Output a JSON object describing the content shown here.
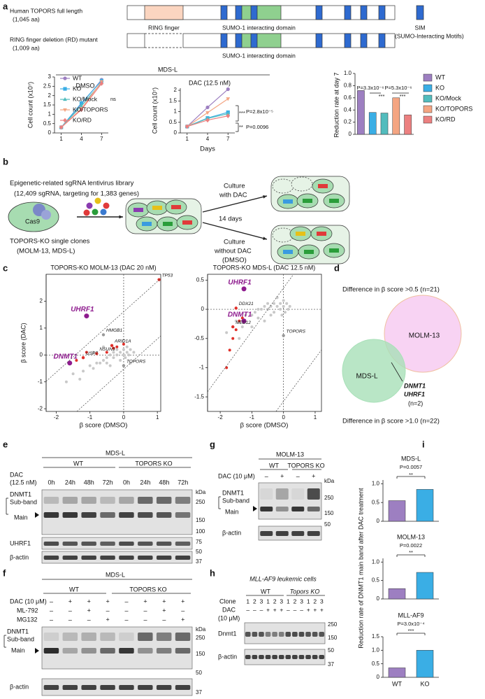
{
  "a": {
    "label": "a",
    "full_name": "Human TOPORS full length",
    "full_len": "(1,045 aa)",
    "rd_name": "RING finger deletion (RD) mutant",
    "rd_len": "(1,009 aa)",
    "ring": "RING finger",
    "sumo_domain": "SUMO-1 interacting domain",
    "sim": "SIM",
    "sim_full": "(SUMO-Interacting Motifs)",
    "cell_line": "MDS-L"
  },
  "chart_data": [
    {
      "type": "line",
      "title": "DMSO",
      "y_label": "Cell count (x10⁷)",
      "x": [
        1,
        4,
        7
      ],
      "xlim": [
        0,
        8
      ],
      "xticks": [
        1,
        4,
        7
      ],
      "ylim": [
        0,
        3
      ],
      "yticks": [
        0,
        0.5,
        1,
        1.5,
        2,
        2.5,
        3
      ],
      "legend": "upper left",
      "series": [
        {
          "name": "WT",
          "color": "#9d7fc1",
          "values": [
            0.3,
            1.55,
            2.85
          ]
        },
        {
          "name": "KO",
          "color": "#3aaee5",
          "values": [
            0.3,
            1.6,
            2.8
          ]
        },
        {
          "name": "KO/Mock",
          "color": "#52bcbd",
          "values": [
            0.3,
            1.45,
            2.7
          ]
        },
        {
          "name": "KO/TOPORS",
          "color": "#f4a582",
          "values": [
            0.3,
            1.3,
            2.75
          ]
        },
        {
          "name": "KO/RD",
          "color": "#ec8080",
          "values": [
            0.3,
            1.25,
            2.65
          ]
        }
      ],
      "annotations": [
        "ns"
      ]
    },
    {
      "type": "line",
      "title": "DAC (12.5 nM)",
      "x_label": "Days",
      "y_label": "Cell count (x10⁷)",
      "x": [
        1,
        4,
        7
      ],
      "xlim": [
        0,
        8
      ],
      "xticks": [
        1,
        4,
        7
      ],
      "ylim": [
        0,
        2.1
      ],
      "yticks": [
        0,
        0.5,
        1,
        1.5,
        2
      ],
      "series": [
        {
          "color": "#9d7fc1",
          "values": [
            0.3,
            1.2,
            2.05
          ]
        },
        {
          "color": "#3aaee5",
          "values": [
            0.3,
            0.7,
            0.97
          ]
        },
        {
          "color": "#52bcbd",
          "values": [
            0.3,
            0.68,
            0.9
          ]
        },
        {
          "color": "#f4a582",
          "values": [
            0.3,
            0.95,
            1.6
          ]
        },
        {
          "color": "#ec8080",
          "values": [
            0.3,
            0.6,
            0.8
          ]
        }
      ],
      "annotations": [
        "***",
        "P=2.8x10⁻⁵",
        "**",
        "P=0.0096"
      ]
    },
    {
      "type": "bar",
      "y_label": "Reduction rate at day 7",
      "categories": [
        "WT",
        "KO",
        "KO/Mock",
        "KO/TOPORS",
        "KO/RD"
      ],
      "values": [
        0.72,
        0.36,
        0.35,
        0.6,
        0.32
      ],
      "colors": [
        "#9d7fc1",
        "#3aaee5",
        "#52bcbd",
        "#f4a582",
        "#ec8080"
      ],
      "ylim": [
        0,
        1
      ],
      "yticks": [
        0,
        0.2,
        0.4,
        0.6,
        0.8,
        {
          "value": 1,
          "label": "1.0"
        }
      ],
      "legend": "right",
      "annotations": [
        "P=3.3x10⁻⁶",
        "P=5.3x10⁻⁶",
        "***",
        "***"
      ]
    },
    {
      "type": "scatter",
      "title": "TOPORS-KO MOLM-13 (DAC 20 nM)",
      "x_label": "β score (DMSO)",
      "y_label": "β score (DAC)",
      "xlim": [
        -2.3,
        1.1
      ],
      "xticks": [
        -2,
        -1,
        0,
        1
      ],
      "ylim": [
        -2.1,
        3
      ],
      "yticks": [
        -2,
        -1,
        0,
        1,
        2
      ],
      "series": [
        {
          "color": "#c8c8c8",
          "x": [
            -1.5,
            -1.2,
            -1.0,
            -0.9,
            -0.8,
            -0.7,
            -0.6,
            -0.5,
            -0.5,
            -0.4,
            -0.3,
            -0.3,
            -0.2,
            -0.2,
            -0.1,
            -0.1,
            0,
            0,
            0.05,
            0.1,
            0.1,
            0.15,
            0.2,
            0.3,
            -1.3,
            -1.7,
            -0.6,
            0.2,
            -0.9,
            -0.4
          ],
          "values": [
            -0.7,
            -0.6,
            -0.4,
            -0.5,
            -0.3,
            -0.3,
            -0.2,
            -0.1,
            -0.3,
            0,
            -0.1,
            0.1,
            0,
            0.2,
            -0.2,
            0.1,
            0,
            0.2,
            -0.1,
            0.1,
            0.3,
            0,
            0.2,
            0.1,
            -0.9,
            -1.0,
            0.3,
            -0.3,
            0.1,
            -0.4
          ]
        },
        {
          "color": "#e0302a",
          "x": [
            -1.4,
            -1.1,
            -0.5,
            -0.3,
            -0.2,
            0
          ],
          "values": [
            -0.2,
            0.1,
            0.1,
            0.25,
            0.3,
            0.4
          ]
        }
      ],
      "labeled_points": [
        {
          "label": "UHRF1",
          "x": -1.1,
          "y": 1.45,
          "color": "#8e1b8e"
        },
        {
          "label": "DNMT1",
          "x": -1.6,
          "y": -0.3,
          "color": "#8e1b8e"
        },
        {
          "label": "HMGB1",
          "x": -0.6,
          "y": 0.75,
          "color": "#999999"
        },
        {
          "label": "ARID1A",
          "x": -0.35,
          "y": 0.35,
          "color": "#e0302a"
        },
        {
          "label": "NSUN3",
          "x": -0.8,
          "y": 0.05,
          "color": "#e0302a"
        },
        {
          "label": "USP7",
          "x": -1.2,
          "y": -0.1,
          "color": "#e0302a"
        },
        {
          "label": "TP53",
          "x": 1.05,
          "y": 2.8,
          "color": "#e0302a"
        },
        {
          "label": "TOPORS",
          "x": 0,
          "y": -0.4,
          "color": "#999999"
        }
      ]
    },
    {
      "type": "scatter",
      "title": "TOPORS-KO MDS-L (DAC 12.5 nM)",
      "x_label": "β score (DMSO)",
      "xlim": [
        -2.4,
        1.2
      ],
      "xticks": [
        -2,
        -1,
        0,
        1
      ],
      "ylim": [
        -1.75,
        0.6
      ],
      "yticks": [
        -1.5,
        -1,
        -0.5,
        0,
        0.5
      ],
      "series": [
        {
          "color": "#c8c8c8",
          "x": [
            -1.8,
            -1.5,
            -1.3,
            -1.2,
            -1.0,
            -0.9,
            -0.8,
            -0.7,
            -0.6,
            -0.5,
            -0.4,
            -0.3,
            -0.2,
            -0.1,
            0,
            0,
            0.1,
            0.2,
            -0.3,
            -0.1,
            -0.6,
            -1.0,
            -0.4,
            0.05,
            -0.2,
            -0.8,
            -1.4,
            0.15,
            -0.05,
            -0.5
          ],
          "values": [
            -0.4,
            -0.2,
            -0.3,
            -0.1,
            -0.1,
            -0.05,
            0,
            0,
            0.05,
            0,
            0.05,
            0.1,
            0.05,
            0.1,
            0.05,
            0.15,
            0.1,
            0.05,
            -0.05,
            0,
            -0.2,
            -0.3,
            -0.1,
            -0.05,
            0.2,
            -0.15,
            -0.5,
            0,
            -0.1,
            0.1
          ]
        },
        {
          "color": "#e0302a",
          "x": [
            -1.8,
            -1.7,
            -1.6,
            -1.5,
            -1.4,
            -1.3
          ],
          "values": [
            -1.0,
            -0.7,
            -0.5,
            -0.35,
            -0.2,
            -0.15
          ]
        }
      ],
      "labeled_points": [
        {
          "label": "UHRF1",
          "x": -1.25,
          "y": 0.35,
          "color": "#8e1b8e"
        },
        {
          "label": "DNMT1",
          "x": -1.25,
          "y": -0.2,
          "color": "#8e1b8e"
        },
        {
          "label": "DDX21",
          "x": -1.5,
          "y": 0.02,
          "color": "#e0302a"
        },
        {
          "label": "MED12",
          "x": -1.6,
          "y": -0.3,
          "color": "#e0302a"
        },
        {
          "label": "TOPORS",
          "x": 0,
          "y": -0.45,
          "color": "#999999"
        }
      ]
    },
    {
      "type": "bar",
      "title": "MDS-L",
      "values": [
        0.55,
        0.85
      ],
      "colors": [
        "#9d7fc1",
        "#3aaee5"
      ],
      "ylim": [
        0,
        1.1
      ],
      "yticks": [
        0,
        0.5,
        {
          "value": 1,
          "label": "1.0"
        }
      ],
      "annotations": [
        "P=0.0057",
        "**"
      ]
    },
    {
      "type": "bar",
      "title": "MOLM-13",
      "values": [
        0.28,
        0.72
      ],
      "colors": [
        "#9d7fc1",
        "#3aaee5"
      ],
      "ylim": [
        0,
        1.1
      ],
      "yticks": [
        0,
        0.5,
        {
          "value": 1,
          "label": "1.0"
        }
      ],
      "annotations": [
        "P=0.0022",
        "**"
      ]
    },
    {
      "type": "bar",
      "title": "MLL-AF9",
      "categories": [
        "WT",
        "KO"
      ],
      "values": [
        0.35,
        1.0
      ],
      "colors": [
        "#9d7fc1",
        "#3aaee5"
      ],
      "ylim": [
        0,
        1.5
      ],
      "yticks": [
        0,
        0.5,
        {
          "value": 1,
          "label": "1.0"
        },
        1.5
      ],
      "annotations": [
        "P=3.0x10⁻⁴",
        "***"
      ]
    }
  ],
  "b": {
    "label": "b",
    "library": "Epigenetic-related sgRNA lentivirus library",
    "library_detail": "(12,409 sgRNA, targeting for 1,383 genes)",
    "cas9": "Cas9",
    "clones": "TOPORS-KO single clones",
    "clone_lines": "(MOLM-13, MDS-L)",
    "culture_dac": [
      "Culture",
      "with DAC"
    ],
    "duration": "14 days",
    "culture_dmso": [
      "Culture",
      "without DAC",
      "(DMSO)"
    ]
  },
  "c": {
    "label": "c"
  },
  "d": {
    "label": "d",
    "top": "Difference in β score >0.5 (n=21)",
    "molm": "MOLM-13",
    "mdsl": "MDS-L",
    "genes": [
      "DNMT1",
      "UHRF1"
    ],
    "count": "(n=2)",
    "bottom": "Difference in β score >1.0 (n=22)"
  },
  "e": {
    "label": "e",
    "cell_line": "MDS-L",
    "groups": [
      "WT",
      "TOPORS KO"
    ],
    "treatment": [
      "DAC",
      "(12.5 nM)"
    ],
    "times": [
      "0h",
      "24h",
      "48h",
      "72h",
      "0h",
      "24h",
      "48h",
      "72h"
    ],
    "bands": [
      "DNMT1",
      "Sub-band",
      "Main",
      "UHRF1",
      "β-actin"
    ],
    "kda": "kDa",
    "markers": [
      250,
      150,
      100,
      75,
      50,
      37
    ]
  },
  "f": {
    "label": "f",
    "cell_line": "MDS-L",
    "groups": [
      "WT",
      "TOPORS KO"
    ],
    "rows": [
      {
        "name": "DAC (10 μM)",
        "signs": [
          "–",
          "+",
          "+",
          "+",
          "–",
          "+",
          "+",
          "+"
        ]
      },
      {
        "name": "ML-792",
        "signs": [
          "–",
          "–",
          "+",
          "–",
          "–",
          "–",
          "+",
          "–"
        ]
      },
      {
        "name": "MG132",
        "signs": [
          "–",
          "–",
          "–",
          "+",
          "–",
          "–",
          "–",
          "+"
        ]
      }
    ],
    "bands": [
      "DNMT1",
      "Sub-band",
      "Main",
      "β-actin"
    ],
    "kda": "kDa",
    "markers": [
      250,
      150,
      50,
      37
    ]
  },
  "g": {
    "label": "g",
    "cell_line": "MOLM-13",
    "groups": [
      "WT",
      "TOPORS KO"
    ],
    "treatment": "DAC (10 μM)",
    "signs": [
      "–",
      "+",
      "–",
      "+"
    ],
    "bands": [
      "DNMT1",
      "Sub-band",
      "Main",
      "β-actin"
    ],
    "kda": "kDa",
    "markers": [
      250,
      150,
      50
    ]
  },
  "h": {
    "label": "h",
    "cells": "MLL-AF9 leukemic cells",
    "groups": [
      "WT",
      "Topors KO"
    ],
    "clone": "Clone",
    "clones": [
      1,
      2,
      3,
      1,
      2,
      3,
      1,
      2,
      3,
      1,
      2,
      3
    ],
    "treatment": [
      "DAC",
      "(10 μM)"
    ],
    "signs": [
      "–",
      "–",
      "–",
      "+",
      "+",
      "+",
      "–",
      "–",
      "–",
      "+",
      "+",
      "+"
    ],
    "bands": [
      "Dnmt1",
      "β-actin"
    ],
    "markers": [
      250,
      150,
      50,
      37
    ]
  },
  "i": {
    "label": "i",
    "y_label": "Reduction rate of DNMT1 main band after DAC treatment"
  }
}
